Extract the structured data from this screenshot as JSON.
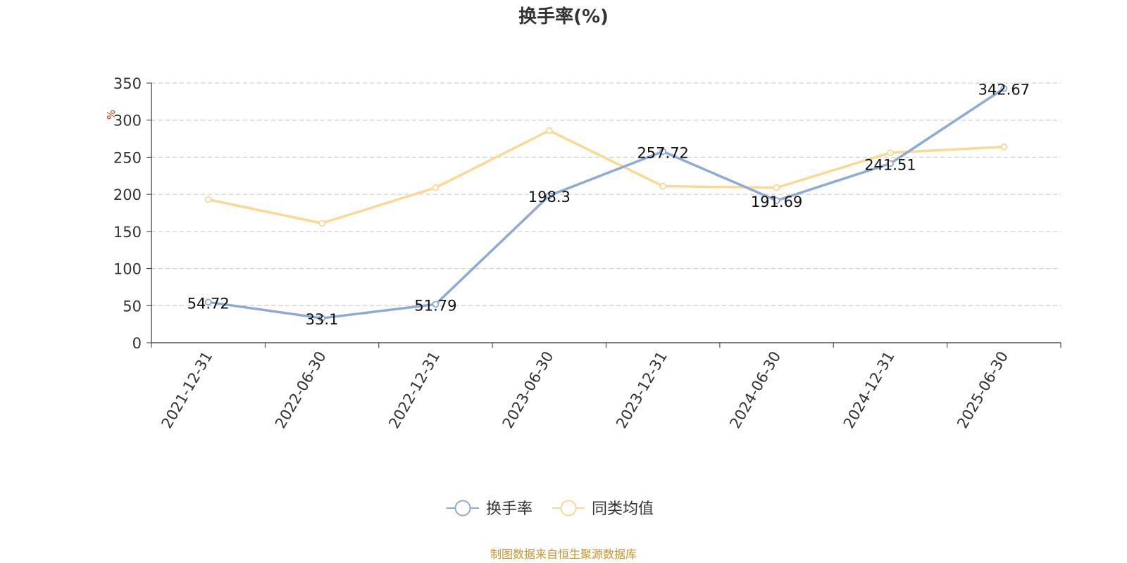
{
  "chart_data": {
    "type": "line",
    "title": "换手率(%)",
    "ylabel": "%",
    "xlabel": "",
    "ylim": [
      0,
      350
    ],
    "yticks": [
      0,
      50,
      100,
      150,
      200,
      250,
      300,
      350
    ],
    "grid": true,
    "legend_position": "bottom-center",
    "categories": [
      "2021-12-31",
      "2022-06-30",
      "2022-12-31",
      "2023-06-30",
      "2023-12-31",
      "2024-06-30",
      "2024-12-31",
      "2025-06-30"
    ],
    "series": [
      {
        "name": "换手率",
        "color": "#8eaad8",
        "values": [
          54.72,
          33.1,
          51.79,
          198.3,
          257.72,
          191.69,
          241.51,
          342.67
        ],
        "labels": [
          "54.72",
          "33.1",
          "51.79",
          "198.3",
          "257.72",
          "191.69",
          "241.51",
          "342.67"
        ]
      },
      {
        "name": "同类均值",
        "color": "#fbd994",
        "values": [
          193,
          161,
          209,
          286,
          211,
          209,
          256,
          264
        ]
      }
    ]
  },
  "footer": {
    "source": "制图数据来自恒生聚源数据库"
  }
}
